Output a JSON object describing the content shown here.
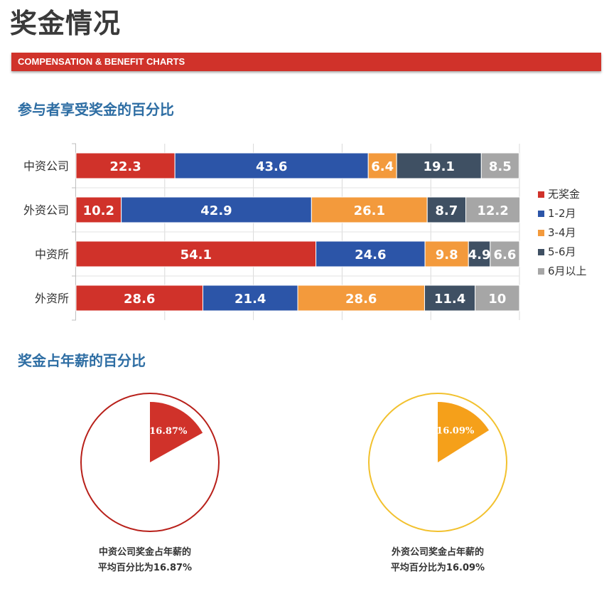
{
  "header": {
    "title": "奖金情况",
    "banner": "COMPENSATION & BENEFIT CHARTS"
  },
  "sections": {
    "bonus_share_title": "参与者享受奖金的百分比",
    "bonus_ratio_title": "奖金占年薪的百分比"
  },
  "chart_data": [
    {
      "type": "bar",
      "orientation": "horizontal",
      "stacked": true,
      "title": "参与者享受奖金的百分比",
      "categories": [
        "中资公司",
        "外资公司",
        "中资所",
        "外资所"
      ],
      "series": [
        {
          "name": "无奖金",
          "color": "#d0322a",
          "values": [
            22.3,
            10.2,
            54.1,
            28.6
          ]
        },
        {
          "name": "1-2月",
          "color": "#2c55a8",
          "values": [
            43.6,
            42.9,
            24.6,
            21.4
          ]
        },
        {
          "name": "3-4月",
          "color": "#f39a3c",
          "values": [
            6.4,
            26.1,
            9.8,
            28.6
          ]
        },
        {
          "name": "5-6月",
          "color": "#3f5063",
          "values": [
            19.1,
            8.7,
            4.9,
            11.4
          ]
        },
        {
          "name": "6月以上",
          "color": "#a6a6a6",
          "values": [
            8.5,
            12.2,
            6.6,
            10
          ]
        }
      ],
      "xlim": [
        0,
        100
      ],
      "grid": true,
      "legend": "right"
    },
    {
      "type": "pie",
      "title": "奖金占年薪的百分比",
      "slices": [
        {
          "label": "16.87%",
          "value": 16.87,
          "color": "#d0322a"
        }
      ],
      "ring_color": "#b8201a",
      "caption_line1": "中资公司奖金占年薪的",
      "caption_line2": "平均百分比为16.87%"
    },
    {
      "type": "pie",
      "title": "奖金占年薪的百分比",
      "slices": [
        {
          "label": "16.09%",
          "value": 16.09,
          "color": "#f5a01a"
        }
      ],
      "ring_color": "#f2c12e",
      "caption_line1": "外资公司奖金占年薪的",
      "caption_line2": "平均百分比为16.09%"
    }
  ]
}
